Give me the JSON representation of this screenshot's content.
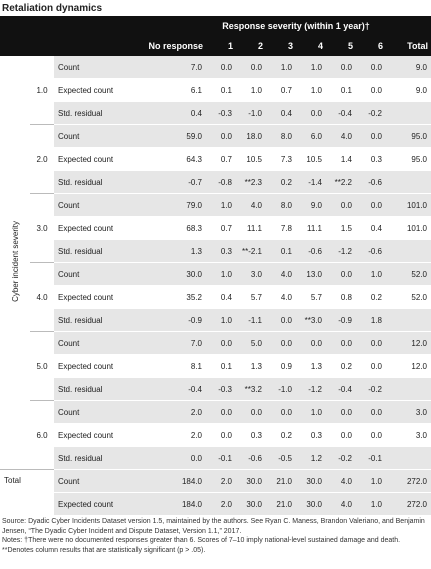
{
  "title": "Retaliation dynamics",
  "header": {
    "span": "Response severity (within 1 year)†",
    "columns": [
      "No response",
      "1",
      "2",
      "3",
      "4",
      "5",
      "6",
      "Total"
    ]
  },
  "axis_label": "Cyber incident severity",
  "groups": [
    {
      "label": "1.0",
      "rows": [
        {
          "label": "Count",
          "values": [
            "7.0",
            "0.0",
            "0.0",
            "1.0",
            "1.0",
            "0.0",
            "0.0",
            "9.0"
          ]
        },
        {
          "label": "Expected count",
          "values": [
            "6.1",
            "0.1",
            "1.0",
            "0.7",
            "1.0",
            "0.1",
            "0.0",
            "9.0"
          ]
        },
        {
          "label": "Std. residual",
          "values": [
            "0.4",
            "-0.3",
            "-1.0",
            "0.4",
            "0.0",
            "-0.4",
            "-0.2"
          ]
        }
      ]
    },
    {
      "label": "2.0",
      "rows": [
        {
          "label": "Count",
          "values": [
            "59.0",
            "0.0",
            "18.0",
            "8.0",
            "6.0",
            "4.0",
            "0.0",
            "95.0"
          ]
        },
        {
          "label": "Expected count",
          "values": [
            "64.3",
            "0.7",
            "10.5",
            "7.3",
            "10.5",
            "1.4",
            "0.3",
            "95.0"
          ]
        },
        {
          "label": "Std. residual",
          "values": [
            "-0.7",
            "-0.8",
            "**2.3",
            "0.2",
            "-1.4",
            "**2.2",
            "-0.6"
          ]
        }
      ]
    },
    {
      "label": "3.0",
      "rows": [
        {
          "label": "Count",
          "values": [
            "79.0",
            "1.0",
            "4.0",
            "8.0",
            "9.0",
            "0.0",
            "0.0",
            "101.0"
          ]
        },
        {
          "label": "Expected count",
          "values": [
            "68.3",
            "0.7",
            "11.1",
            "7.8",
            "11.1",
            "1.5",
            "0.4",
            "101.0"
          ]
        },
        {
          "label": "Std. residual",
          "values": [
            "1.3",
            "0.3",
            "**-2.1",
            "0.1",
            "-0.6",
            "-1.2",
            "-0.6"
          ]
        }
      ]
    },
    {
      "label": "4.0",
      "rows": [
        {
          "label": "Count",
          "values": [
            "30.0",
            "1.0",
            "3.0",
            "4.0",
            "13.0",
            "0.0",
            "1.0",
            "52.0"
          ]
        },
        {
          "label": "Expected count",
          "values": [
            "35.2",
            "0.4",
            "5.7",
            "4.0",
            "5.7",
            "0.8",
            "0.2",
            "52.0"
          ]
        },
        {
          "label": "Std. residual",
          "values": [
            "-0.9",
            "1.0",
            "-1.1",
            "0.0",
            "**3.0",
            "-0.9",
            "1.8"
          ]
        }
      ]
    },
    {
      "label": "5.0",
      "rows": [
        {
          "label": "Count",
          "values": [
            "7.0",
            "0.0",
            "5.0",
            "0.0",
            "0.0",
            "0.0",
            "0.0",
            "12.0"
          ]
        },
        {
          "label": "Expected count",
          "values": [
            "8.1",
            "0.1",
            "1.3",
            "0.9",
            "1.3",
            "0.2",
            "0.0",
            "12.0"
          ]
        },
        {
          "label": "Std. residual",
          "values": [
            "-0.4",
            "-0.3",
            "**3.2",
            "-1.0",
            "-1.2",
            "-0.4",
            "-0.2"
          ]
        }
      ]
    },
    {
      "label": "6.0",
      "rows": [
        {
          "label": "Count",
          "values": [
            "2.0",
            "0.0",
            "0.0",
            "0.0",
            "1.0",
            "0.0",
            "0.0",
            "3.0"
          ]
        },
        {
          "label": "Expected count",
          "values": [
            "2.0",
            "0.0",
            "0.3",
            "0.2",
            "0.3",
            "0.0",
            "0.0",
            "3.0"
          ]
        },
        {
          "label": "Std. residual",
          "values": [
            "0.0",
            "-0.1",
            "-0.6",
            "-0.5",
            "1.2",
            "-0.2",
            "-0.1"
          ]
        }
      ]
    }
  ],
  "total": {
    "label": "Total",
    "rows": [
      {
        "label": "Count",
        "values": [
          "184.0",
          "2.0",
          "30.0",
          "21.0",
          "30.0",
          "4.0",
          "1.0",
          "272.0"
        ]
      },
      {
        "label": "Expected count",
        "values": [
          "184.0",
          "2.0",
          "30.0",
          "21.0",
          "30.0",
          "4.0",
          "1.0",
          "272.0"
        ]
      }
    ]
  },
  "notes": [
    "Source: Dyadic Cyber Incidents Dataset version 1.5, maintained by the authors. See Ryan C. Maness, Brandon Valeriano, and Benjamin Jensen, “The Dyadic Cyber Incident and Dispute Dataset, Version 1.1,” 2017.",
    "Notes: †There were no documented responses greater than 6. Scores of 7–10 imply national-level sustained damage and death.",
    "**Denotes column results that are statistically significant (p > .05)."
  ]
}
